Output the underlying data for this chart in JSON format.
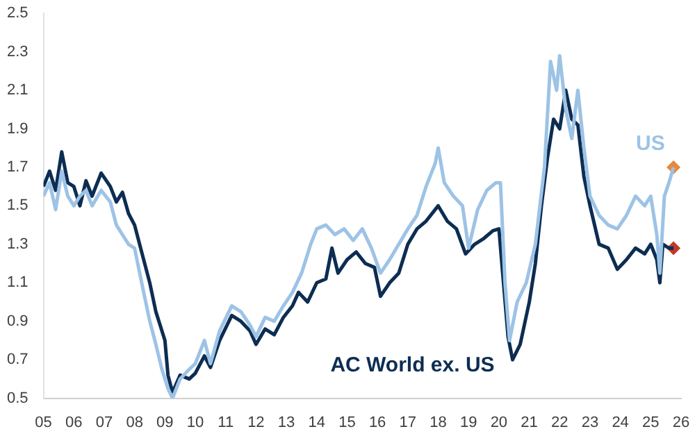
{
  "chart_data": {
    "type": "line",
    "xlim": [
      2005,
      2026
    ],
    "xticks": [
      {
        "value": 2005,
        "label": "05"
      },
      {
        "value": 2006,
        "label": "06"
      },
      {
        "value": 2007,
        "label": "07"
      },
      {
        "value": 2008,
        "label": "08"
      },
      {
        "value": 2009,
        "label": "09"
      },
      {
        "value": 2010,
        "label": "10"
      },
      {
        "value": 2011,
        "label": "11"
      },
      {
        "value": 2012,
        "label": "12"
      },
      {
        "value": 2013,
        "label": "13"
      },
      {
        "value": 2014,
        "label": "14"
      },
      {
        "value": 2015,
        "label": "15"
      },
      {
        "value": 2016,
        "label": "16"
      },
      {
        "value": 2017,
        "label": "17"
      },
      {
        "value": 2018,
        "label": "18"
      },
      {
        "value": 2019,
        "label": "19"
      },
      {
        "value": 2020,
        "label": "20"
      },
      {
        "value": 2021,
        "label": "21"
      },
      {
        "value": 2022,
        "label": "22"
      },
      {
        "value": 2023,
        "label": "23"
      },
      {
        "value": 2024,
        "label": "24"
      },
      {
        "value": 2025,
        "label": "25"
      },
      {
        "value": 2026,
        "label": "26"
      }
    ],
    "ylim": [
      0.5,
      2.5
    ],
    "yticks": [
      0.5,
      0.7,
      0.9,
      1.1,
      1.3,
      1.5,
      1.7,
      1.9,
      2.1,
      2.3,
      2.5
    ],
    "grid": false,
    "legend": false,
    "marker": "none",
    "series": [
      {
        "name": "US",
        "color": "#9dc3e6",
        "x": [
          2005.0,
          2005.2,
          2005.4,
          2005.6,
          2005.8,
          2006.0,
          2006.2,
          2006.4,
          2006.6,
          2006.9,
          2007.2,
          2007.4,
          2007.6,
          2007.8,
          2008.0,
          2008.3,
          2008.5,
          2008.7,
          2008.9,
          2009.1,
          2009.25,
          2009.5,
          2009.8,
          2010.0,
          2010.3,
          2010.5,
          2010.8,
          2011.2,
          2011.5,
          2011.8,
          2012.0,
          2012.3,
          2012.6,
          2012.9,
          2013.2,
          2013.5,
          2013.8,
          2014.0,
          2014.3,
          2014.6,
          2014.9,
          2015.2,
          2015.5,
          2015.8,
          2016.1,
          2016.4,
          2016.7,
          2017.0,
          2017.3,
          2017.6,
          2017.9,
          2018.0,
          2018.2,
          2018.5,
          2018.8,
          2019.0,
          2019.3,
          2019.6,
          2019.9,
          2020.05,
          2020.2,
          2020.35,
          2020.6,
          2020.9,
          2021.2,
          2021.5,
          2021.7,
          2021.9,
          2022.0,
          2022.2,
          2022.4,
          2022.6,
          2022.8,
          2023.0,
          2023.3,
          2023.6,
          2023.9,
          2024.2,
          2024.5,
          2024.8,
          2025.0,
          2025.2,
          2025.3,
          2025.45,
          2025.6,
          2025.75
        ],
        "values": [
          1.55,
          1.62,
          1.48,
          1.68,
          1.55,
          1.5,
          1.55,
          1.58,
          1.5,
          1.58,
          1.52,
          1.4,
          1.35,
          1.3,
          1.28,
          1.05,
          0.9,
          0.78,
          0.65,
          0.55,
          0.5,
          0.6,
          0.65,
          0.68,
          0.8,
          0.68,
          0.85,
          0.98,
          0.95,
          0.88,
          0.82,
          0.92,
          0.9,
          0.98,
          1.05,
          1.15,
          1.3,
          1.38,
          1.4,
          1.35,
          1.38,
          1.32,
          1.38,
          1.28,
          1.15,
          1.22,
          1.3,
          1.38,
          1.45,
          1.6,
          1.72,
          1.8,
          1.62,
          1.55,
          1.5,
          1.28,
          1.48,
          1.58,
          1.62,
          1.62,
          1.1,
          0.8,
          1.0,
          1.1,
          1.3,
          1.7,
          2.25,
          2.1,
          2.28,
          2.0,
          1.85,
          2.1,
          1.8,
          1.55,
          1.45,
          1.4,
          1.38,
          1.45,
          1.55,
          1.5,
          1.55,
          1.35,
          1.15,
          1.55,
          1.62,
          1.7
        ]
      },
      {
        "name": "AC World ex. US",
        "color": "#0d2d52",
        "x": [
          2005.0,
          2005.2,
          2005.4,
          2005.6,
          2005.8,
          2006.0,
          2006.2,
          2006.4,
          2006.6,
          2006.9,
          2007.2,
          2007.4,
          2007.6,
          2007.8,
          2008.0,
          2008.3,
          2008.5,
          2008.7,
          2008.9,
          2009.0,
          2009.1,
          2009.25,
          2009.5,
          2009.8,
          2010.0,
          2010.3,
          2010.5,
          2010.8,
          2011.2,
          2011.5,
          2011.8,
          2012.0,
          2012.3,
          2012.6,
          2012.9,
          2013.2,
          2013.4,
          2013.7,
          2014.0,
          2014.3,
          2014.5,
          2014.7,
          2015.0,
          2015.3,
          2015.6,
          2015.9,
          2016.1,
          2016.4,
          2016.7,
          2017.0,
          2017.3,
          2017.6,
          2018.0,
          2018.3,
          2018.6,
          2018.9,
          2019.2,
          2019.5,
          2019.8,
          2020.0,
          2020.15,
          2020.3,
          2020.45,
          2020.7,
          2021.0,
          2021.2,
          2021.4,
          2021.6,
          2021.8,
          2022.0,
          2022.2,
          2022.4,
          2022.6,
          2022.8,
          2023.0,
          2023.3,
          2023.6,
          2023.9,
          2024.2,
          2024.5,
          2024.8,
          2025.0,
          2025.2,
          2025.3,
          2025.4,
          2025.6,
          2025.75
        ],
        "values": [
          1.6,
          1.68,
          1.58,
          1.78,
          1.62,
          1.6,
          1.5,
          1.63,
          1.55,
          1.67,
          1.6,
          1.52,
          1.57,
          1.46,
          1.4,
          1.22,
          1.1,
          0.95,
          0.85,
          0.8,
          0.62,
          0.53,
          0.62,
          0.6,
          0.63,
          0.72,
          0.66,
          0.8,
          0.93,
          0.9,
          0.85,
          0.78,
          0.86,
          0.83,
          0.92,
          0.98,
          1.05,
          1.0,
          1.1,
          1.12,
          1.28,
          1.15,
          1.22,
          1.26,
          1.2,
          1.18,
          1.03,
          1.1,
          1.15,
          1.3,
          1.38,
          1.42,
          1.5,
          1.42,
          1.38,
          1.25,
          1.3,
          1.33,
          1.37,
          1.38,
          1.1,
          0.82,
          0.7,
          0.78,
          1.0,
          1.2,
          1.5,
          1.75,
          1.95,
          1.9,
          2.1,
          1.95,
          1.92,
          1.65,
          1.5,
          1.3,
          1.28,
          1.17,
          1.22,
          1.28,
          1.25,
          1.3,
          1.22,
          1.1,
          1.3,
          1.28,
          1.28
        ]
      },
      {
        "type": "scatter",
        "marker": "diamond",
        "color": "#e8883a",
        "x": [
          2025.75
        ],
        "values": [
          1.7
        ]
      },
      {
        "type": "scatter",
        "marker": "diamond",
        "color": "#c0392b",
        "x": [
          2025.75
        ],
        "values": [
          1.28
        ]
      }
    ]
  }
}
